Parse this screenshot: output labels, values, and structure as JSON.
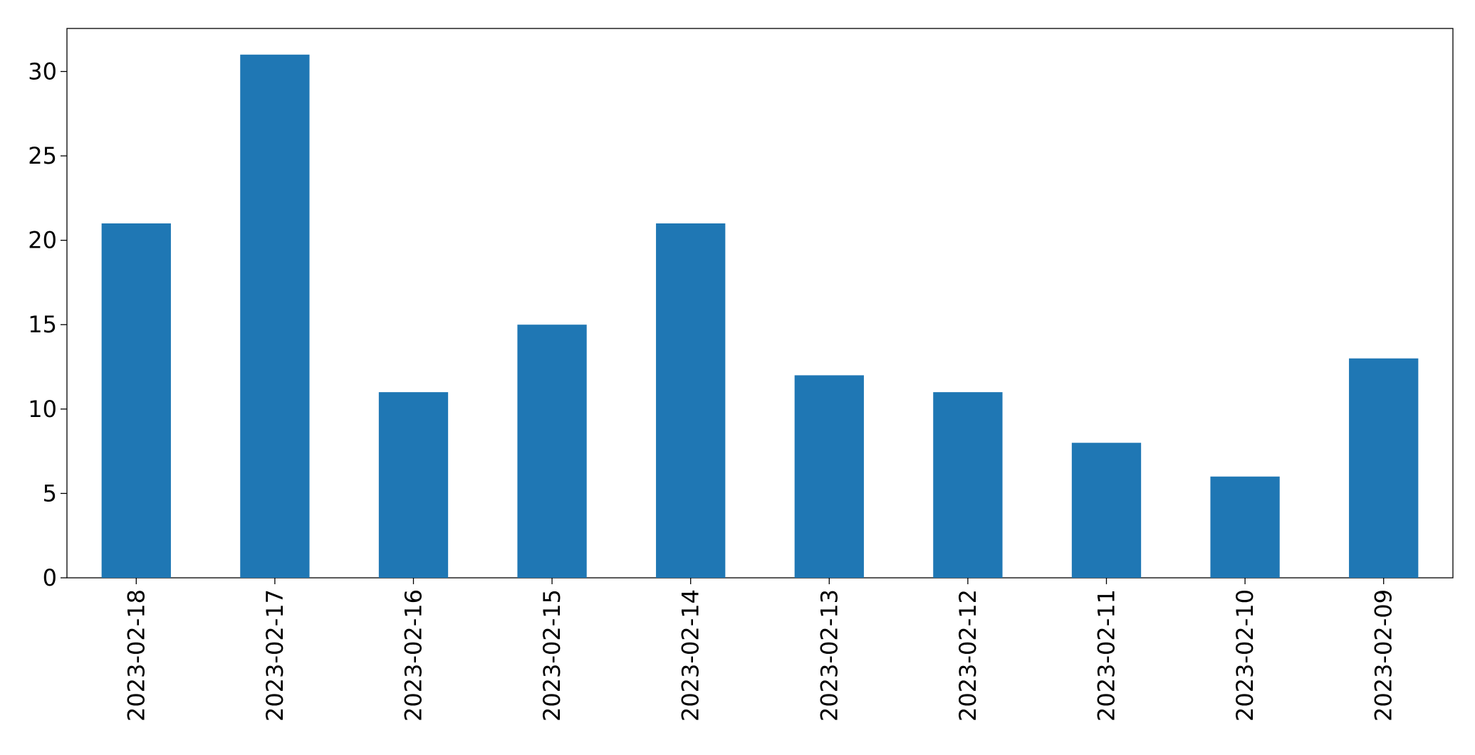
{
  "chart_data": {
    "type": "bar",
    "categories": [
      "2023-02-18",
      "2023-02-17",
      "2023-02-16",
      "2023-02-15",
      "2023-02-14",
      "2023-02-13",
      "2023-02-12",
      "2023-02-11",
      "2023-02-10",
      "2023-02-09"
    ],
    "values": [
      21,
      31,
      11,
      15,
      21,
      12,
      11,
      8,
      6,
      13
    ],
    "color": "#1f77b4",
    "ylim": [
      0,
      32.55
    ],
    "yticks": [
      0,
      5,
      10,
      15,
      20,
      25,
      30
    ],
    "grid": false
  }
}
